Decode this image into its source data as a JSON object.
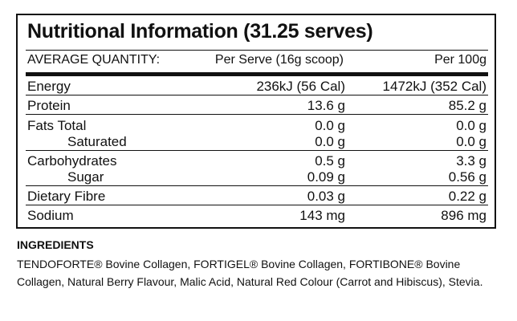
{
  "panel": {
    "title": "Nutritional Information (31.25 serves)",
    "header": {
      "label": "AVERAGE QUANTITY:",
      "per_serve": "Per Serve (16g scoop)",
      "per_100g": "Per 100g"
    },
    "groups": [
      [
        {
          "name": "Energy",
          "per_serve": "236kJ (56 Cal)",
          "per_100g": "1472kJ (352 Cal)"
        }
      ],
      [
        {
          "name": "Protein",
          "per_serve": "13.6 g",
          "per_100g": "85.2 g"
        }
      ],
      [
        {
          "name": "Fats Total",
          "per_serve": "0.0 g",
          "per_100g": "0.0 g"
        },
        {
          "name": "Saturated",
          "per_serve": "0.0 g",
          "per_100g": "0.0 g"
        }
      ],
      [
        {
          "name": "Carbohydrates",
          "per_serve": "0.5 g",
          "per_100g": "3.3 g"
        },
        {
          "name": "Sugar",
          "per_serve": "0.09 g",
          "per_100g": "0.56 g"
        }
      ],
      [
        {
          "name": "Dietary Fibre",
          "per_serve": "0.03 g",
          "per_100g": "0.22 g"
        }
      ],
      [
        {
          "name": "Sodium",
          "per_serve": "143 mg",
          "per_100g": "896 mg"
        }
      ]
    ]
  },
  "ingredients": {
    "title": "INGREDIENTS",
    "text": "TENDOFORTE® Bovine Collagen, FORTIGEL® Bovine Collagen, FORTIBONE® Bovine Collagen, Natural Berry Flavour, Malic Acid, Natural Red Colour (Carrot and Hibiscus), Stevia."
  }
}
